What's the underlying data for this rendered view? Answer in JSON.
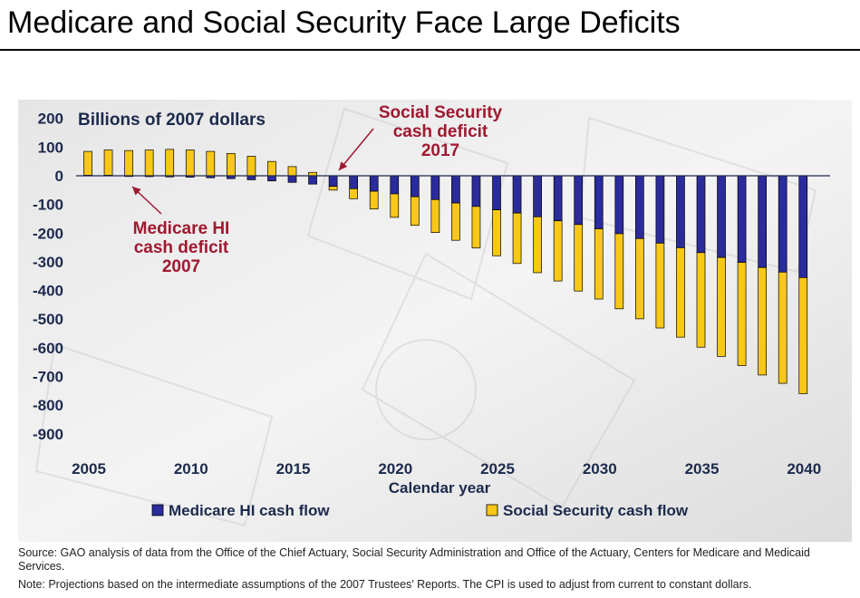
{
  "slide": {
    "title": "Medicare and Social Security Face Large Deficits"
  },
  "chart_data": {
    "type": "bar",
    "stacked": true,
    "unit_label": "Billions of 2007 dollars",
    "xlabel": "Calendar year",
    "ylim": [
      -900,
      200
    ],
    "yticks": [
      200,
      100,
      0,
      -100,
      -200,
      -300,
      -400,
      -500,
      -600,
      -700,
      -800,
      -900
    ],
    "xticks": [
      2005,
      2010,
      2015,
      2020,
      2025,
      2030,
      2035,
      2040
    ],
    "x": [
      2005,
      2006,
      2007,
      2008,
      2009,
      2010,
      2011,
      2012,
      2013,
      2014,
      2015,
      2016,
      2017,
      2018,
      2019,
      2020,
      2021,
      2022,
      2023,
      2024,
      2025,
      2026,
      2027,
      2028,
      2029,
      2030,
      2031,
      2032,
      2033,
      2034,
      2035,
      2036,
      2037,
      2038,
      2039,
      2040
    ],
    "series": [
      {
        "name": "Medicare HI cash flow",
        "color": "#2b2b9c",
        "values": [
          2,
          2,
          -2,
          -3,
          -4,
          -5,
          -7,
          -10,
          -14,
          -18,
          -23,
          -29,
          -37,
          -45,
          -54,
          -63,
          -73,
          -83,
          -95,
          -107,
          -119,
          -130,
          -143,
          -157,
          -170,
          -185,
          -202,
          -219,
          -235,
          -251,
          -268,
          -285,
          -302,
          -320,
          -336,
          -355
        ]
      },
      {
        "name": "Social Security cash flow",
        "color": "#f8c818",
        "values": [
          83,
          88,
          88,
          90,
          92,
          90,
          85,
          78,
          68,
          50,
          32,
          12,
          -13,
          -35,
          -62,
          -82,
          -100,
          -115,
          -130,
          -145,
          -160,
          -176,
          -195,
          -210,
          -232,
          -245,
          -262,
          -280,
          -296,
          -312,
          -330,
          -345,
          -360,
          -375,
          -388,
          -405
        ]
      }
    ],
    "annotations": [
      {
        "name": "medicare-hi-deficit",
        "text": "Medicare HI\ncash deficit\n2007",
        "color": "#a01830",
        "target_year": 2007
      },
      {
        "name": "social-security-deficit",
        "text": "Social Security\ncash deficit\n2017",
        "color": "#a01830",
        "target_year": 2017
      }
    ],
    "legend_position": "bottom"
  },
  "notes": {
    "source": "Source:  GAO analysis of data from the Office of the Chief Actuary, Social Security Administration and Office of the Actuary, Centers for Medicare and Medicaid Services.",
    "note": "Note:  Projections based on the intermediate assumptions of the 2007 Trustees’ Reports. The CPI is used to adjust from current to constant dollars."
  }
}
